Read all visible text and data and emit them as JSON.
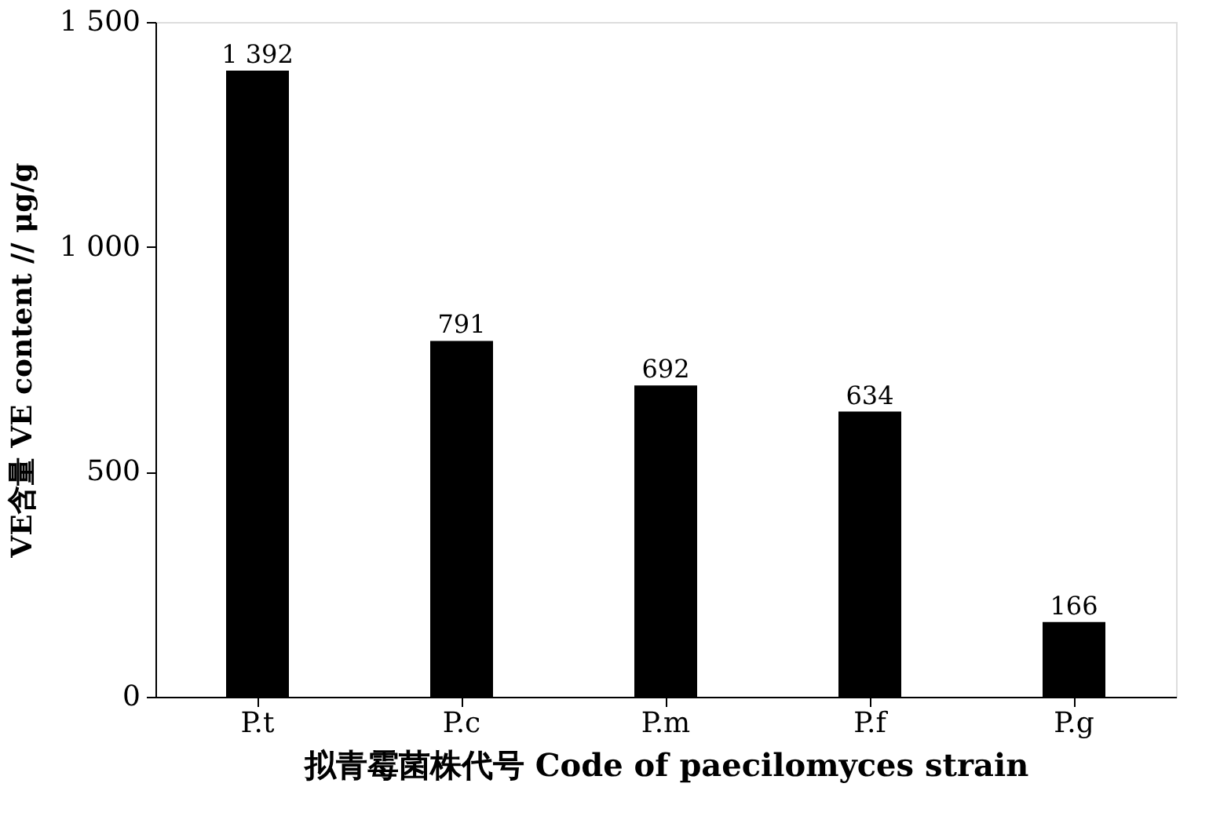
{
  "chart_data": {
    "type": "bar",
    "xlabel": "拟青霉菌株代号 Code of paecilomyces strain",
    "ylabel": "VE含量 VE content // μg/g",
    "categories": [
      "P.t",
      "P.c",
      "P.m",
      "P.f",
      "P.g"
    ],
    "values": [
      1392,
      791,
      692,
      634,
      166
    ],
    "value_labels": [
      "1 392",
      "791",
      "692",
      "634",
      "166"
    ],
    "color": "#000000",
    "ylim": [
      0,
      1500
    ],
    "yticks": [
      0,
      500,
      {
        "value": 1000,
        "label": "1 000"
      },
      {
        "value": 1500,
        "label": "1 500"
      }
    ],
    "grid": false
  }
}
